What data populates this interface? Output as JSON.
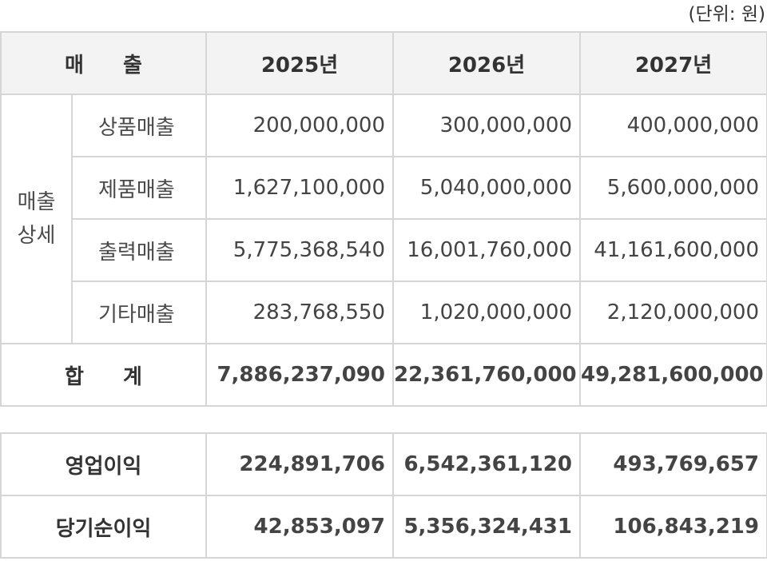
{
  "unit": "(단위: 원)",
  "header": {
    "sales": "매 출",
    "years": [
      "2025년",
      "2026년",
      "2027년"
    ]
  },
  "group_label_line1": "매출",
  "group_label_line2": "상세",
  "detail_rows": [
    {
      "label": "상품매출",
      "values": [
        "200,000,000",
        "300,000,000",
        "400,000,000"
      ]
    },
    {
      "label": "제품매출",
      "values": [
        "1,627,100,000",
        "5,040,000,000",
        "5,600,000,000"
      ]
    },
    {
      "label": "출력매출",
      "values": [
        "5,775,368,540",
        "16,001,760,000",
        "41,161,600,000"
      ]
    },
    {
      "label": "기타매출",
      "values": [
        "283,768,550",
        "1,020,000,000",
        "2,120,000,000"
      ]
    }
  ],
  "total": {
    "label": "합 계",
    "values": [
      "7,886,237,090",
      "22,361,760,000",
      "49,281,600,000"
    ]
  },
  "operating_profit": {
    "label": "영업이익",
    "values": [
      "224,891,706",
      "6,542,361,120",
      "493,769,657"
    ]
  },
  "net_income": {
    "label": "당기순이익",
    "values": [
      "42,853,097",
      "5,356,324,431",
      "106,843,219"
    ]
  }
}
